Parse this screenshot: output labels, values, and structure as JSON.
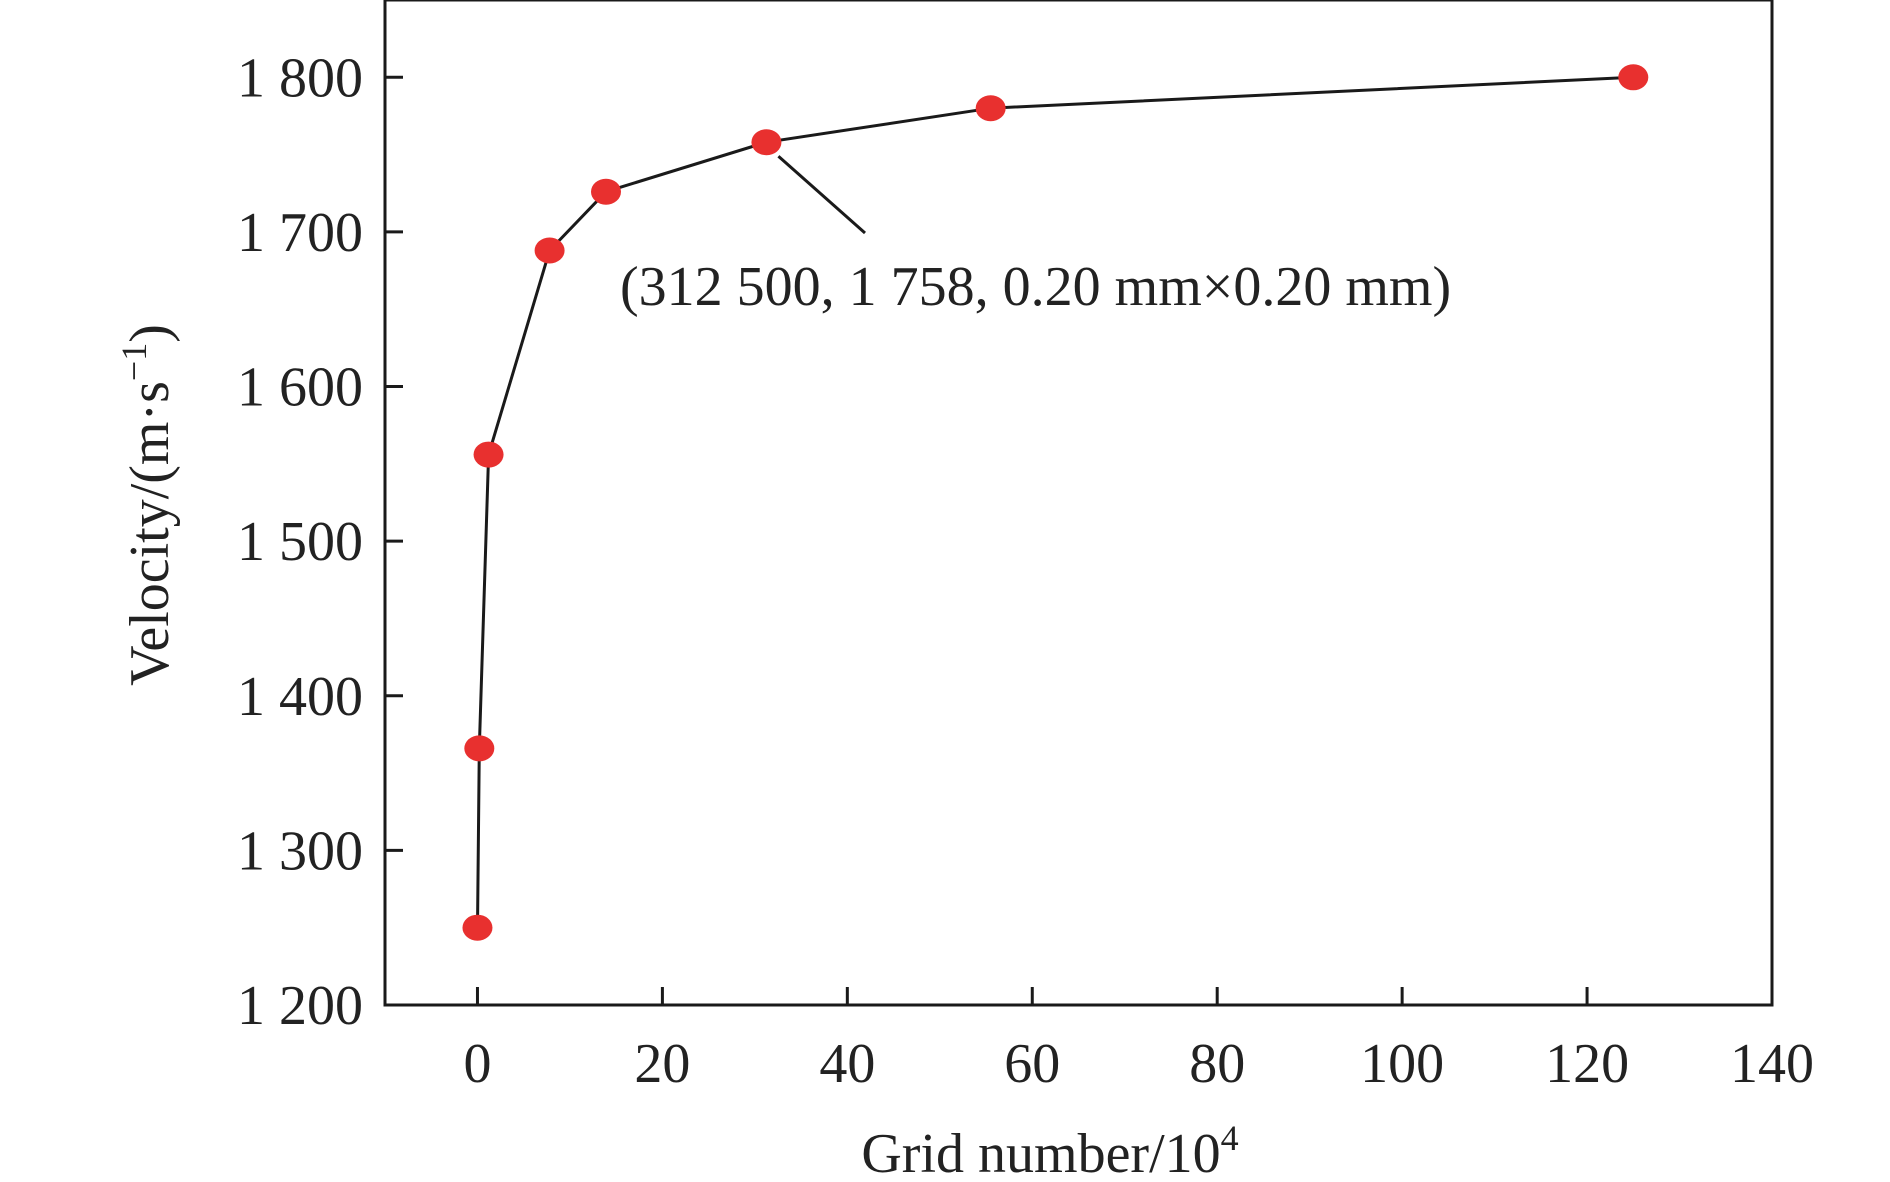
{
  "chart_data": {
    "type": "scatter",
    "xlabel": "Grid number/10",
    "xlabel_sup": "4",
    "ylabel": "Velocity/(m·s",
    "ylabel_sup": "−1",
    "ylabel_end": ")",
    "xlim": [
      -10,
      140
    ],
    "ylim": [
      1200,
      1850
    ],
    "x_ticks": [
      0,
      20,
      40,
      60,
      80,
      100,
      120,
      140
    ],
    "x_tick_labels": [
      "0",
      "20",
      "40",
      "60",
      "80",
      "100",
      "120",
      "140"
    ],
    "y_ticks": [
      1200,
      1300,
      1400,
      1500,
      1600,
      1700,
      1800
    ],
    "y_tick_labels": [
      "1 200",
      "1 300",
      "1 400",
      "1 500",
      "1 600",
      "1 700",
      "1 800"
    ],
    "grid": false,
    "line_color": "#1a1a1a",
    "marker_color": "#e8302f",
    "series": [
      {
        "x": [
          0.0,
          0.2,
          1.2,
          7.8,
          13.9,
          31.25,
          55.5,
          125.0
        ],
        "y": [
          1250,
          1366,
          1556,
          1688,
          1726,
          1758,
          1780,
          1800
        ]
      }
    ],
    "annotation": {
      "text": "(312 500, 1 758, 0.20 mm×0.20 mm)",
      "point_x": 31.25,
      "point_y": 1758
    }
  }
}
